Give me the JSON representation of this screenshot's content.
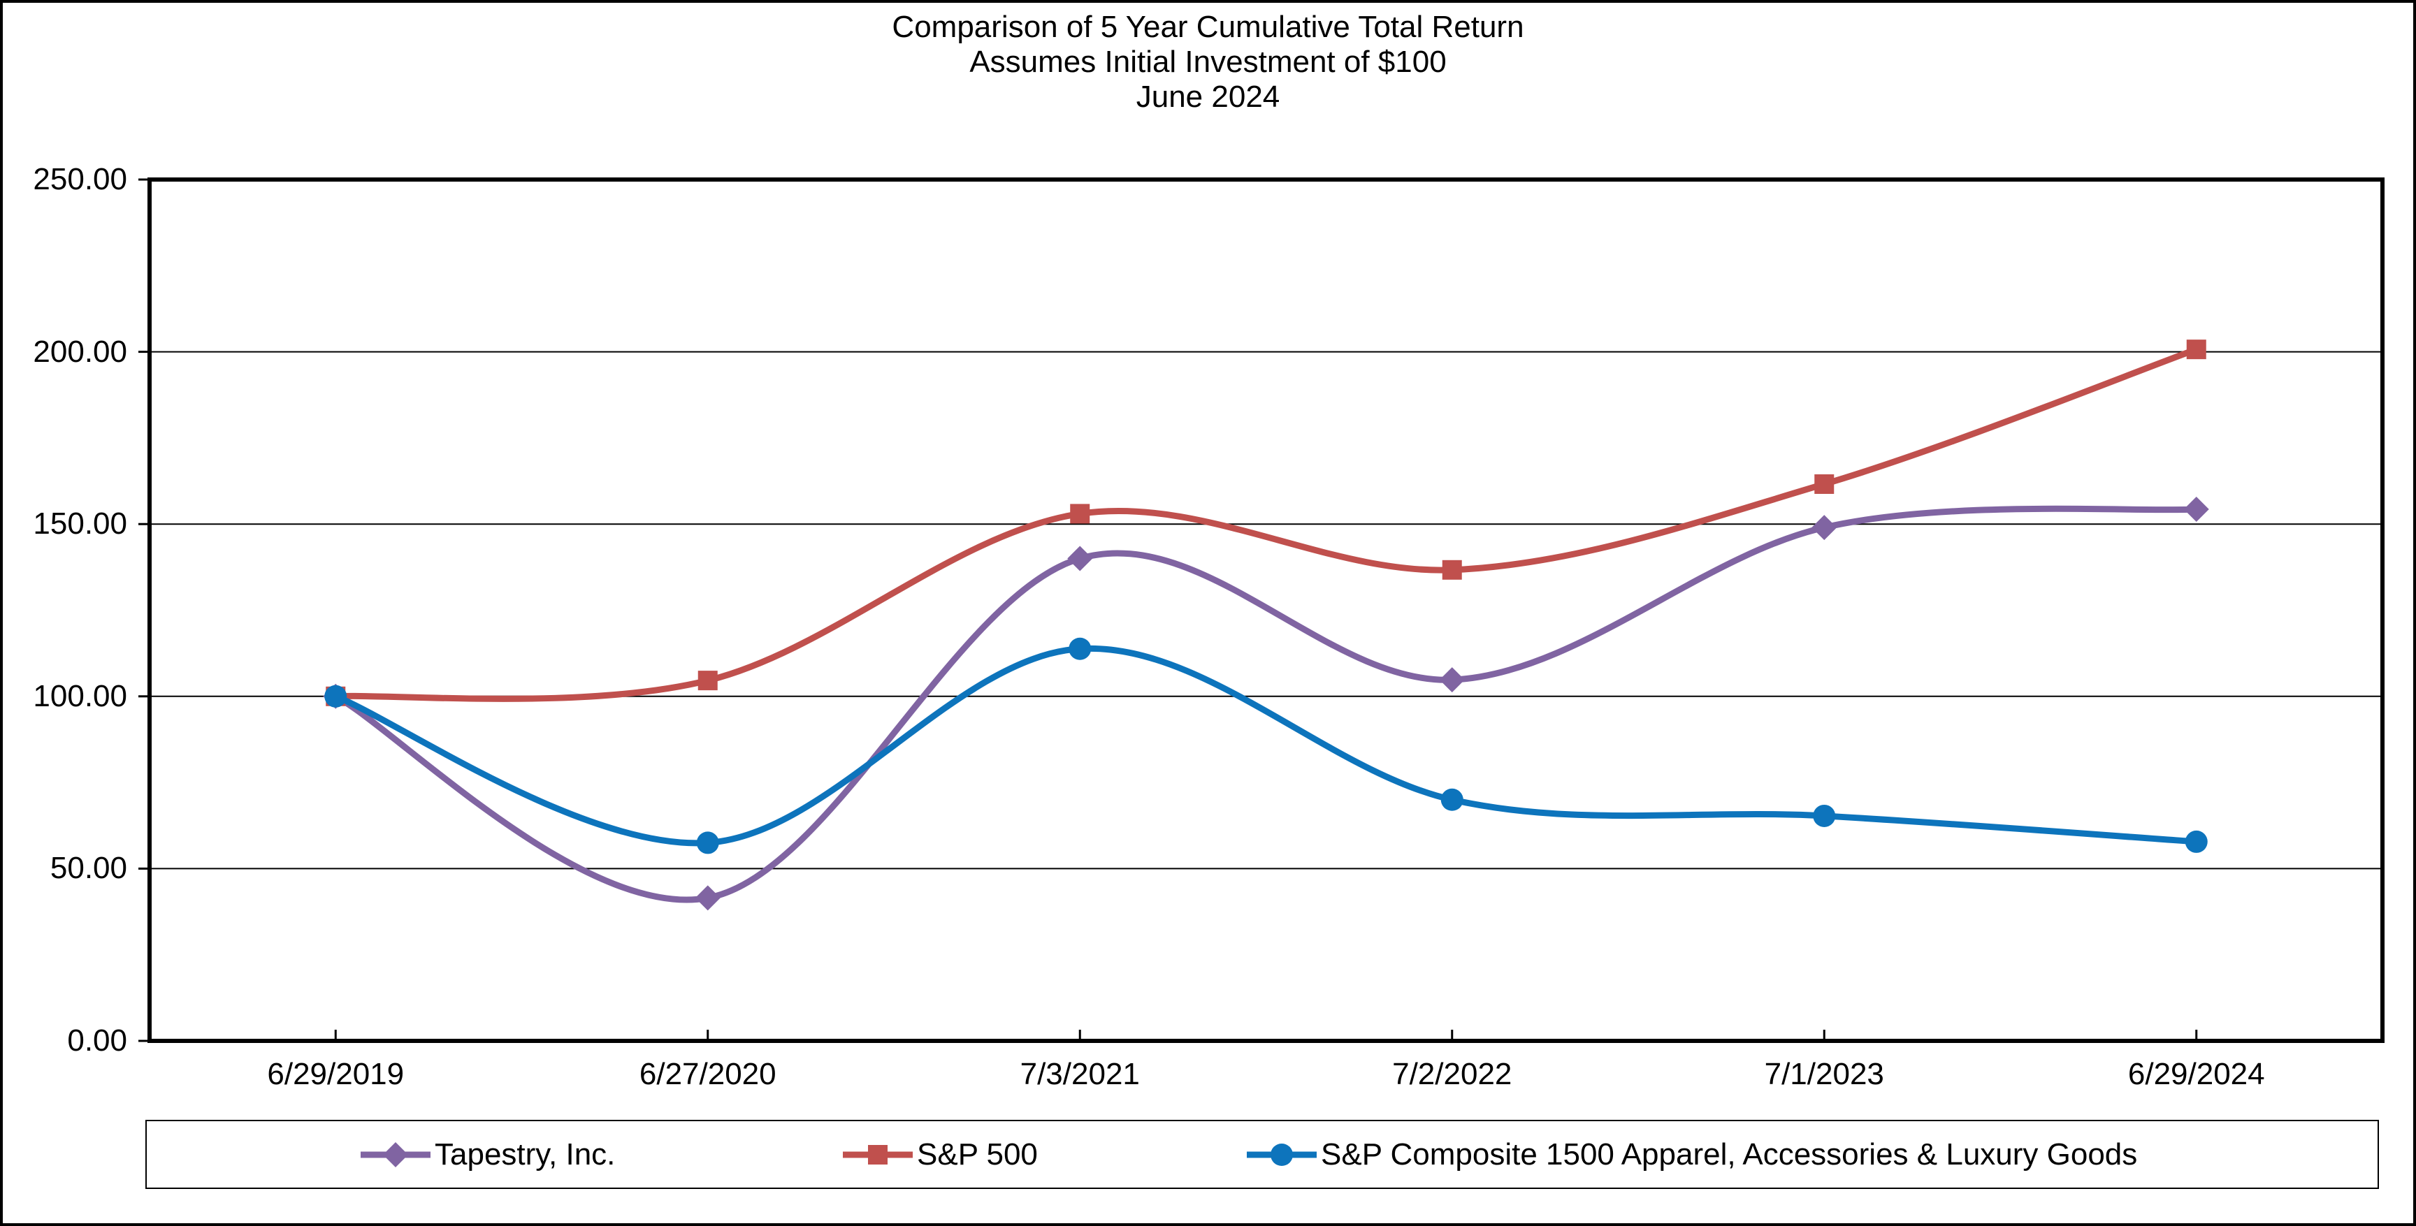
{
  "title": {
    "line1": "Comparison of 5 Year Cumulative Total Return",
    "line2": "Assumes Initial Investment of $100",
    "line3": "June 2024"
  },
  "chart_data": {
    "type": "line",
    "smoothed": true,
    "title": "Comparison of 5 Year Cumulative Total Return",
    "subtitle": "Assumes Initial Investment of $100",
    "period_label": "June 2024",
    "categories": [
      "6/29/2019",
      "6/27/2020",
      "7/3/2021",
      "7/2/2022",
      "7/1/2023",
      "6/29/2024"
    ],
    "series": [
      {
        "name": "Tapestry, Inc.",
        "color": "#8064A2",
        "marker": "diamond",
        "values": [
          100.0,
          41.5,
          140.0,
          104.8,
          149.0,
          154.3
        ]
      },
      {
        "name": "S&P 500",
        "color": "#C0504D",
        "marker": "square",
        "values": [
          100.0,
          104.6,
          153.0,
          136.7,
          161.6,
          200.7
        ]
      },
      {
        "name": "S&P Composite 1500 Apparel, Accessories & Luxury Goods",
        "color": "#0D74BC",
        "marker": "circle",
        "values": [
          100.0,
          57.5,
          113.8,
          70.0,
          65.3,
          57.8
        ]
      }
    ],
    "ylim": [
      0,
      250
    ],
    "y_ticks": [
      "0.00",
      "50.00",
      "100.00",
      "150.00",
      "200.00",
      "250.00"
    ],
    "grid": true,
    "gridline_color": "#000000",
    "axis_color": "#000000",
    "legend_position": "bottom"
  }
}
